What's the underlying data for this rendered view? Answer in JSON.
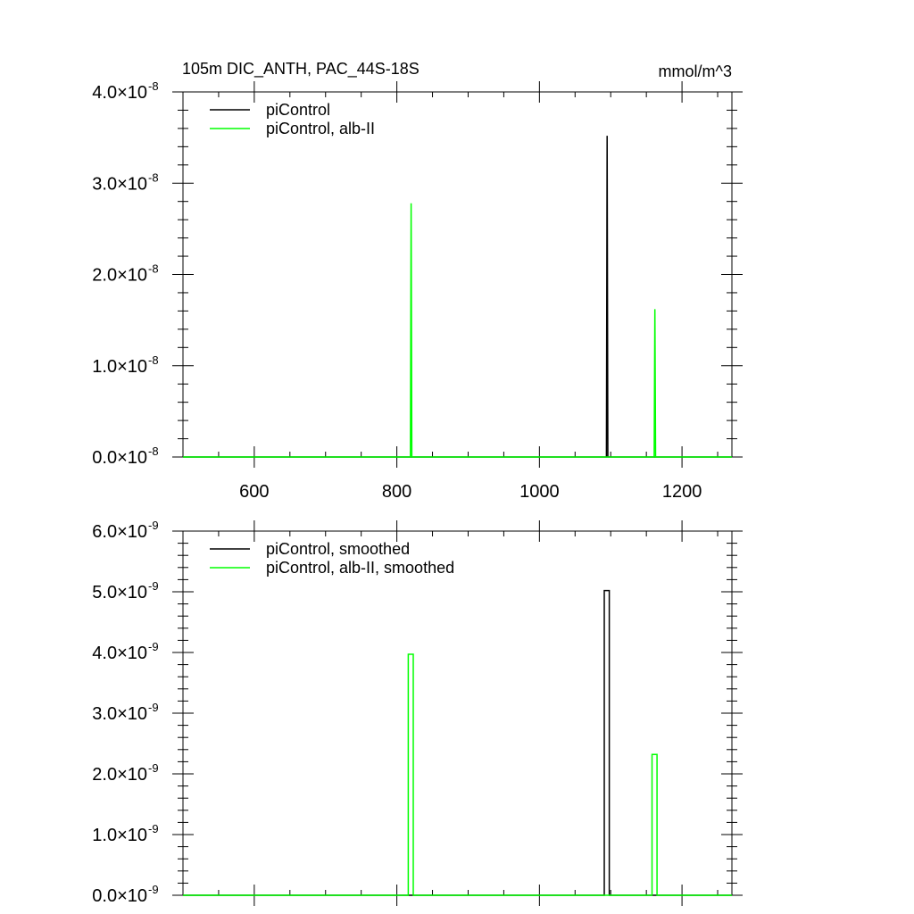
{
  "header": {
    "title": "105m DIC_ANTH, PAC_44S-18S",
    "units": "mmol/m^3"
  },
  "chart_data": [
    {
      "type": "line",
      "title": "105m DIC_ANTH, PAC_44S-18S",
      "units": "mmol/m^3",
      "xlim": [
        500,
        1270
      ],
      "ylim": [
        0,
        4e-08
      ],
      "x_ticks": [
        600,
        800,
        1000,
        1200
      ],
      "x_tick_labels": [
        "600",
        "800",
        "1000",
        "1200"
      ],
      "y_ticks": [
        0,
        1e-08,
        2e-08,
        3e-08,
        4e-08
      ],
      "y_tick_mantissas": [
        "0.0",
        "1.0",
        "2.0",
        "3.0",
        "4.0"
      ],
      "y_tick_times": "×10",
      "y_tick_exponent": "-8",
      "legend_position": "top-left",
      "series": [
        {
          "name": "piControl",
          "color": "#000000",
          "x": [
            500,
            1094,
            1095,
            1096,
            1270
          ],
          "y": [
            0,
            0,
            3.52e-08,
            0,
            0
          ]
        },
        {
          "name": "piControl, alb-II",
          "color": "#00ff00",
          "x": [
            500,
            819,
            820,
            821,
            1161,
            1162,
            1163,
            1270
          ],
          "y": [
            0,
            0,
            2.78e-08,
            0,
            0,
            1.62e-08,
            0,
            0
          ]
        }
      ]
    },
    {
      "type": "line",
      "xlim": [
        500,
        1270
      ],
      "ylim": [
        0,
        6e-09
      ],
      "x_ticks": [
        600,
        800,
        1000,
        1200
      ],
      "y_ticks": [
        0,
        1e-09,
        2e-09,
        3e-09,
        4e-09,
        5e-09,
        6e-09
      ],
      "y_tick_mantissas": [
        "0.0",
        "1.0",
        "2.0",
        "3.0",
        "4.0",
        "5.0",
        "6.0"
      ],
      "y_tick_times": "×10",
      "y_tick_exponent": "-9",
      "legend_position": "top-left",
      "series": [
        {
          "name": "piControl, smoothed",
          "color": "#000000",
          "x": [
            500,
            1091,
            1091,
            1098,
            1098,
            1270
          ],
          "y": [
            0,
            0,
            5.02e-09,
            5.02e-09,
            0,
            0
          ]
        },
        {
          "name": "piControl, alb-II, smoothed",
          "color": "#00ff00",
          "x": [
            500,
            816,
            816,
            823,
            823,
            1158,
            1158,
            1165,
            1165,
            1270
          ],
          "y": [
            0,
            0,
            3.97e-09,
            3.97e-09,
            0,
            0,
            2.32e-09,
            2.32e-09,
            0,
            0
          ]
        }
      ]
    }
  ]
}
